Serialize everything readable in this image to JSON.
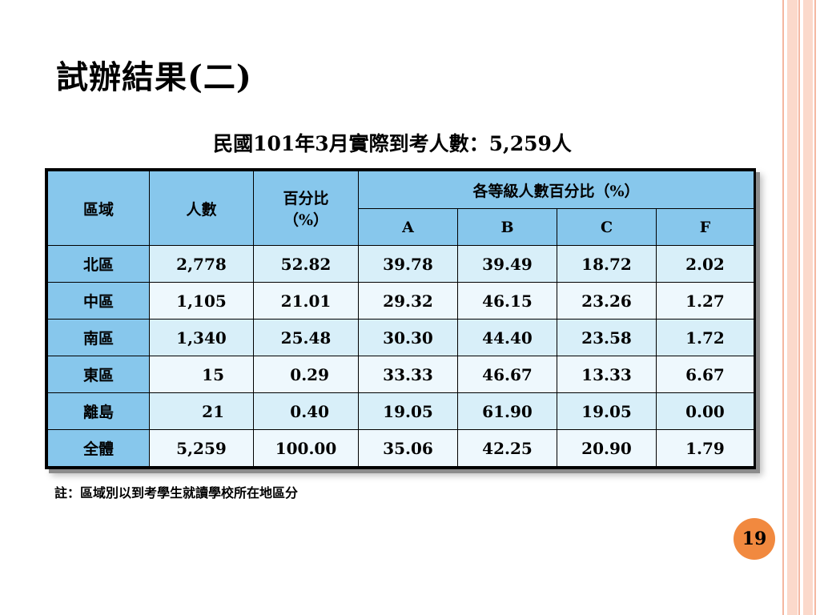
{
  "title": "試辦結果(二)",
  "subtitle": "民國101年3月實際到考人數：5,259人",
  "table": {
    "headers": {
      "region": "區域",
      "count": "人數",
      "percent_l1": "百分比",
      "percent_l2": "（%）",
      "grade_group": "各等級人數百分比（%）",
      "grades": [
        "A",
        "B",
        "C",
        "F"
      ]
    },
    "rows": [
      {
        "region": "北區",
        "count": "2,778",
        "percent": "52.82",
        "a": "39.78",
        "b": "39.49",
        "c": "18.72",
        "f": "2.02"
      },
      {
        "region": "中區",
        "count": "1,105",
        "percent": "21.01",
        "a": "29.32",
        "b": "46.15",
        "c": "23.26",
        "f": "1.27"
      },
      {
        "region": "南區",
        "count": "1,340",
        "percent": "25.48",
        "a": "30.30",
        "b": "44.40",
        "c": "23.58",
        "f": "1.72"
      },
      {
        "region": "東區",
        "count": "15",
        "percent": "0.29",
        "a": "33.33",
        "b": "46.67",
        "c": "13.33",
        "f": "6.67"
      },
      {
        "region": "離島",
        "count": "21",
        "percent": "0.40",
        "a": "19.05",
        "b": "61.90",
        "c": "19.05",
        "f": "0.00"
      },
      {
        "region": "全體",
        "count": "5,259",
        "percent": "100.00",
        "a": "35.06",
        "b": "42.25",
        "c": "20.90",
        "f": "1.79"
      }
    ]
  },
  "note": "註：區域別以到考學生就讀學校所在地區分",
  "page_number": "19",
  "colors": {
    "header_fill": "#87c7ec",
    "row_fill_dark": "#d8eff9",
    "row_fill_light": "#eef8fd",
    "page_badge": "#f1893f",
    "edge_stripes": "#fbd9cb"
  }
}
